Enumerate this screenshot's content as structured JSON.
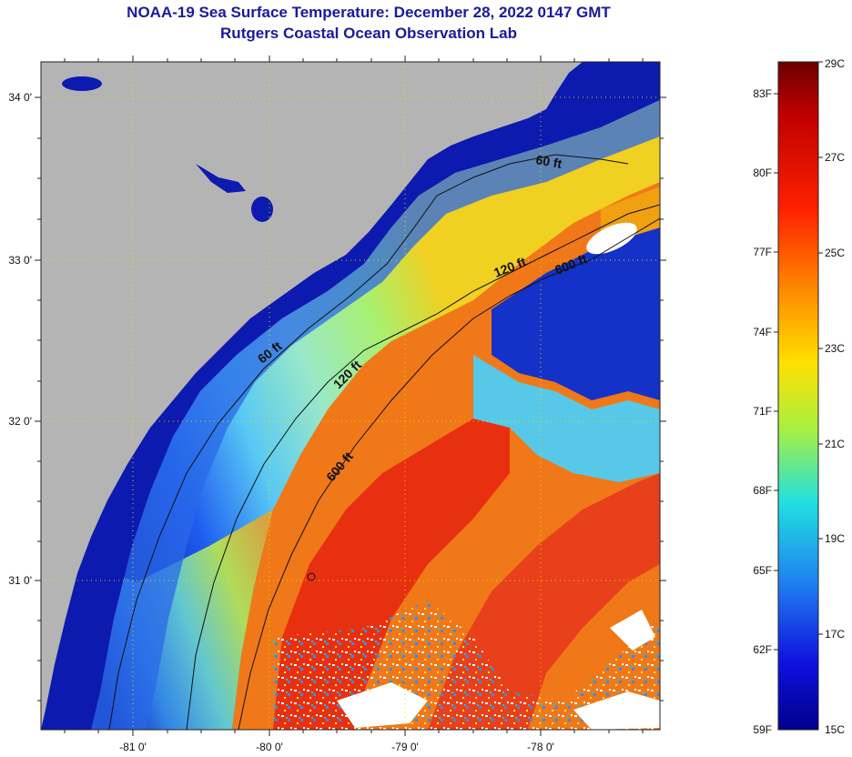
{
  "title_line1": "NOAA-19 Sea Surface Temperature:  December 28, 2022 0147 GMT",
  "title_line2": "Rutgers Coastal Ocean Observation Lab",
  "map": {
    "latitude_labels": [
      "34 0'",
      "33 0'",
      "32 0'",
      "31 0'"
    ],
    "longitude_labels": [
      "-81 0'",
      "-80 0'",
      "-79 0'",
      "-78 0'"
    ],
    "grid": "dotted",
    "land_color": "#b4b4b4",
    "cloud_color": "#ffffff",
    "contours": [
      {
        "label": "60 ft",
        "name": "isobath-60ft"
      },
      {
        "label": "120 ft",
        "name": "isobath-120ft"
      },
      {
        "label": "600 ft",
        "name": "isobath-600ft"
      }
    ],
    "contour_label_instances": [
      "60 ft",
      "60 ft",
      "120 ft",
      "120 ft",
      "600 ft",
      "600 ft"
    ]
  },
  "colorbar": {
    "fahrenheit_labels": [
      "83F",
      "80F",
      "77F",
      "74F",
      "71F",
      "68F",
      "65F",
      "62F",
      "59F"
    ],
    "celsius_labels": [
      "29C",
      "27C",
      "25C",
      "23C",
      "21C",
      "19C",
      "17C",
      "15C"
    ],
    "min_c": 15,
    "max_c": 29
  }
}
